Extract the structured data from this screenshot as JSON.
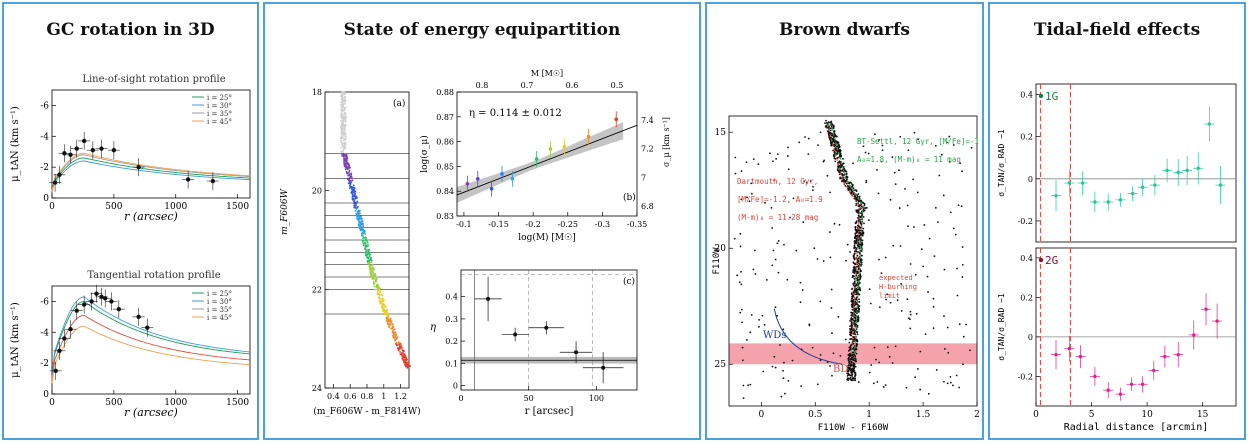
{
  "panels": {
    "gc": {
      "title": "GC rotation in 3D"
    },
    "eq": {
      "title": "State of energy equipartition"
    },
    "bd": {
      "title": "Brown dwarfs"
    },
    "tidal": {
      "title": "Tidal-field effects"
    }
  },
  "colors": {
    "frame": "#4aa3df",
    "bd_band": "#f4a3ad",
    "g1": "#20c997",
    "g2": "#e0218a",
    "dashed_red": "#e0443c"
  },
  "chart_data": [
    {
      "id": "los",
      "type": "line",
      "title": "Line-of-sight rotation profile",
      "xlabel": "r (arcsec)",
      "ylabel": "μ_tAN (km s⁻¹)",
      "xlim": [
        0,
        1600
      ],
      "ylim": [
        0,
        -7
      ],
      "xticks": [
        "0",
        "500",
        "1000",
        "1500"
      ],
      "yticks": [
        "0",
        "-2",
        "-4",
        "-6"
      ],
      "legend": [
        "i = 25°",
        "i = 30°",
        "i = 35°",
        "i = 45°"
      ],
      "legend_colors": [
        "#1f9d55",
        "#3b9fd8",
        "#9e9e9e",
        "#f0a050"
      ],
      "legend_placement": "top-right",
      "points": [
        [
          25,
          -1.0
        ],
        [
          60,
          -1.5
        ],
        [
          100,
          -2.9
        ],
        [
          150,
          -2.8
        ],
        [
          200,
          -3.2
        ],
        [
          260,
          -3.7
        ],
        [
          330,
          -3.1
        ],
        [
          400,
          -3.2
        ],
        [
          500,
          -3.1
        ],
        [
          700,
          -2.0
        ],
        [
          1100,
          -1.2
        ],
        [
          1300,
          -1.1
        ]
      ],
      "curves": [
        {
          "name": "i = 25°",
          "color": "#1f9d55",
          "peak": -2.6
        },
        {
          "name": "i = 30°",
          "color": "#3b9fd8",
          "peak": -2.4
        },
        {
          "name": "i = 35°",
          "color": "#9e9e9e",
          "peak": -2.8
        },
        {
          "name": "i = 45°",
          "color": "#f0a050",
          "peak": -2.9
        }
      ]
    },
    {
      "id": "tan",
      "type": "line",
      "title": "Tangential rotation profile",
      "xlabel": "r (arcsec)",
      "ylabel": "μ_tAN (km s⁻¹)",
      "xlim": [
        0,
        1600
      ],
      "ylim": [
        0,
        -7
      ],
      "xticks": [
        "0",
        "500",
        "1000",
        "1500"
      ],
      "yticks": [
        "0",
        "-2",
        "-4",
        "-6"
      ],
      "legend": [
        "i = 25°",
        "i = 30°",
        "i = 35°",
        "i = 45°"
      ],
      "legend_colors": [
        "#1f9d55",
        "#3b9fd8",
        "#9e9e9e",
        "#f0a050"
      ],
      "legend_placement": "top-right",
      "points": [
        [
          30,
          -1.5
        ],
        [
          60,
          -2.8
        ],
        [
          100,
          -3.6
        ],
        [
          150,
          -4.2
        ],
        [
          200,
          -5.4
        ],
        [
          260,
          -5.8
        ],
        [
          320,
          -6.0
        ],
        [
          360,
          -6.5
        ],
        [
          400,
          -6.3
        ],
        [
          430,
          -6.2
        ],
        [
          480,
          -6.0
        ],
        [
          540,
          -5.5
        ],
        [
          700,
          -5.0
        ],
        [
          770,
          -4.3
        ]
      ],
      "curves": [
        {
          "name": "i = 25°",
          "color": "#1f9d55",
          "peak": -6.0
        },
        {
          "name": "i = 30°",
          "color": "#3b9fd8",
          "peak": -6.3
        },
        {
          "name": "i = 35°",
          "color": "#e74c3c",
          "peak": -5.1
        },
        {
          "name": "i = 45°",
          "color": "#f0a050",
          "peak": -4.4
        }
      ]
    },
    {
      "id": "cmd_a",
      "type": "scatter",
      "label": "(a)",
      "xlabel": "(m_F606W - m_F814W)",
      "ylabel": "m_F606W",
      "xlim": [
        0.3,
        1.3
      ],
      "ylim": [
        24,
        18
      ],
      "xticks": [
        "0.4",
        "0.6",
        "0.8",
        "1",
        "1.2"
      ],
      "yticks": [
        "18",
        "20",
        "22",
        "24"
      ],
      "bin_edges": [
        19.25,
        19.75,
        20.25,
        20.5,
        20.75,
        21.0,
        21.25,
        21.5,
        21.75,
        22.0,
        22.5
      ]
    },
    {
      "id": "eta_mass",
      "type": "scatter",
      "label": "(b)",
      "annotation": "η = 0.114 ± 0.012",
      "xlabel": "log(M) [M☉]",
      "x2label": "M [M☉]",
      "ylabel": "log(σ_μ)",
      "y2label": "σ_μ [km s⁻¹]",
      "xlim": [
        -0.09,
        -0.35
      ],
      "ylim": [
        0.83,
        0.88
      ],
      "xticks": [
        "-0.1",
        "-0.15",
        "-0.2",
        "-0.25",
        "-0.3",
        "-0.35"
      ],
      "yticks": [
        "0.83",
        "0.84",
        "0.85",
        "0.86",
        "0.87",
        "0.88"
      ],
      "x2ticks": [
        "0.8",
        "0.7",
        "0.6",
        "0.5"
      ],
      "y2ticks": [
        "6.8",
        "7",
        "7.2",
        "7.4"
      ],
      "points": [
        {
          "x": -0.105,
          "y": 0.843,
          "color": "#7b3fb5"
        },
        {
          "x": -0.12,
          "y": 0.845,
          "color": "#5a3fd1"
        },
        {
          "x": -0.14,
          "y": 0.841,
          "color": "#3157e0"
        },
        {
          "x": -0.155,
          "y": 0.847,
          "color": "#2f7ff0"
        },
        {
          "x": -0.17,
          "y": 0.845,
          "color": "#2aa6e8"
        },
        {
          "x": -0.205,
          "y": 0.853,
          "color": "#2fbf6a"
        },
        {
          "x": -0.225,
          "y": 0.857,
          "color": "#9bd13a"
        },
        {
          "x": -0.245,
          "y": 0.858,
          "color": "#e8d02a"
        },
        {
          "x": -0.28,
          "y": 0.862,
          "color": "#f08a2a"
        },
        {
          "x": -0.32,
          "y": 0.869,
          "color": "#e53a2a"
        }
      ]
    },
    {
      "id": "eta_r",
      "type": "scatter",
      "label": "(c)",
      "xlabel": "r [arcsec]",
      "ylabel": "η",
      "xlim": [
        0,
        130
      ],
      "ylim": [
        -0.02,
        0.52
      ],
      "xticks": [
        "0",
        "50",
        "100"
      ],
      "yticks": [
        "0",
        "0.1",
        "0.2",
        "0.3",
        "0.4"
      ],
      "points": [
        {
          "x": 20,
          "y": 0.39,
          "xerr": 10,
          "yerr": 0.1
        },
        {
          "x": 40,
          "y": 0.23,
          "xerr": 10,
          "yerr": 0.03
        },
        {
          "x": 63,
          "y": 0.26,
          "xerr": 13,
          "yerr": 0.03
        },
        {
          "x": 85,
          "y": 0.15,
          "xerr": 12,
          "yerr": 0.05
        },
        {
          "x": 105,
          "y": 0.08,
          "xerr": 15,
          "yerr": 0.07
        }
      ],
      "hline": 0.114
    },
    {
      "id": "bd_cmd",
      "type": "scatter",
      "xlabel": "F110W - F160W",
      "ylabel": "F110W",
      "xlim": [
        -0.3,
        2
      ],
      "ylim": [
        26.8,
        14.3
      ],
      "xticks": [
        "0",
        "0.5",
        "1",
        "1.5",
        "2"
      ],
      "yticks": [
        "15",
        "20",
        "25"
      ],
      "annotations_green": [
        "BT-Settl, 12 Gyr, [M/Fe]=-1",
        "A₀=1.8, (M-m)₀ = 11 mag"
      ],
      "annotations_red": [
        "Dartmouth, 12 Gyr,",
        "[M/Fe]=-1.2, A₀=1.9",
        "(M-m)₀ = 11.28 mag"
      ],
      "hburn_label": [
        "expected",
        "H-burning",
        "limit"
      ],
      "wd_label": "WDs",
      "bd_label": "BD",
      "band": [
        24.1,
        25.0
      ]
    },
    {
      "id": "g1",
      "type": "scatter",
      "label": "1G",
      "ylabel": "σ_TAN/σ_RAD −1",
      "xlim": [
        0,
        18
      ],
      "ylim": [
        -0.3,
        0.45
      ],
      "yticks": [
        "0.4",
        "0.2",
        "0",
        "-0.2"
      ],
      "vlines": [
        0.4,
        3.1
      ],
      "points": [
        [
          1.8,
          -0.08
        ],
        [
          3.0,
          -0.02
        ],
        [
          4.2,
          -0.02
        ],
        [
          5.3,
          -0.11
        ],
        [
          6.5,
          -0.11
        ],
        [
          7.6,
          -0.1
        ],
        [
          8.7,
          -0.07
        ],
        [
          9.6,
          -0.04
        ],
        [
          10.7,
          -0.03
        ],
        [
          11.8,
          0.04
        ],
        [
          12.8,
          0.03
        ],
        [
          13.6,
          0.04
        ],
        [
          14.6,
          0.05
        ],
        [
          15.6,
          0.26
        ],
        [
          16.6,
          -0.03
        ]
      ]
    },
    {
      "id": "g2",
      "type": "scatter",
      "label": "2G",
      "xlabel": "Radial distance [arcmin]",
      "ylabel": "σ_TAN/σ_RAD −1",
      "xlim": [
        0,
        18
      ],
      "ylim": [
        -0.35,
        0.45
      ],
      "xticks": [
        "0",
        "5",
        "10",
        "15"
      ],
      "yticks": [
        "0.4",
        "0.2",
        "0",
        "-0.2"
      ],
      "vlines": [
        0.4,
        3.1
      ],
      "points": [
        [
          1.8,
          -0.09
        ],
        [
          3.0,
          -0.06
        ],
        [
          4.0,
          -0.1
        ],
        [
          5.3,
          -0.2
        ],
        [
          6.5,
          -0.27
        ],
        [
          7.6,
          -0.29
        ],
        [
          8.6,
          -0.24
        ],
        [
          9.6,
          -0.24
        ],
        [
          10.6,
          -0.17
        ],
        [
          11.6,
          -0.1
        ],
        [
          12.8,
          -0.09
        ],
        [
          14.2,
          0.01
        ],
        [
          15.3,
          0.14
        ],
        [
          16.3,
          0.08
        ]
      ]
    }
  ]
}
